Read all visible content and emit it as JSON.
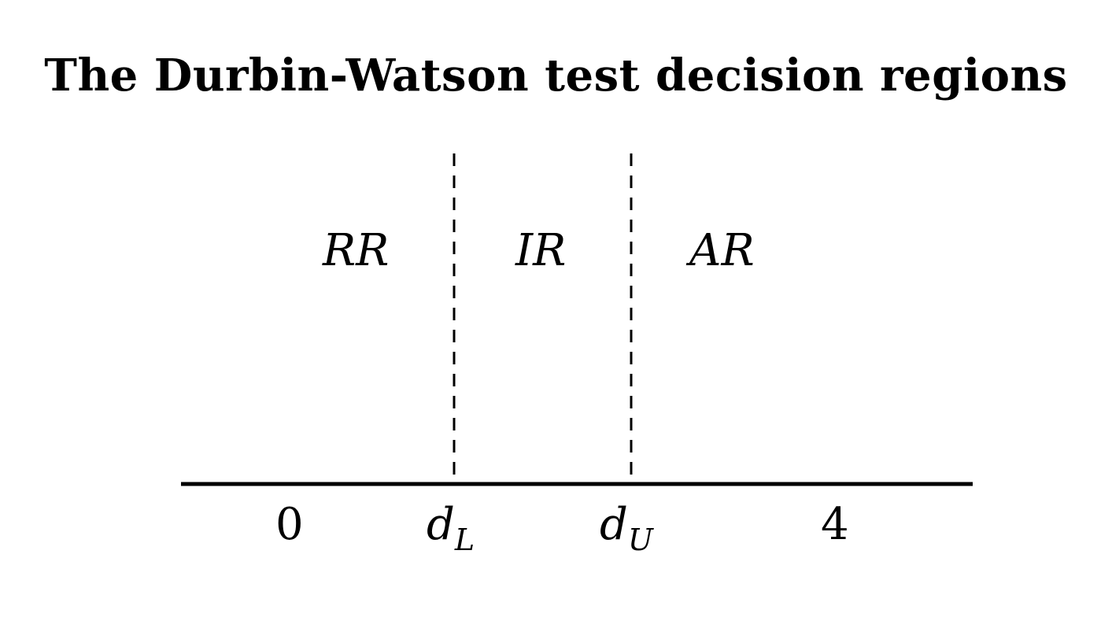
{
  "title": "The Durbin-Watson test decision regions",
  "regions": [
    {
      "id": "rr",
      "label": "RR"
    },
    {
      "id": "ir",
      "label": "IR"
    },
    {
      "id": "ar",
      "label": "AR"
    }
  ],
  "ticks": {
    "zero": "0",
    "dl_base": "d",
    "dl_sub": "L",
    "du_base": "d",
    "du_sub": "U",
    "four": "4"
  },
  "colors": {
    "line": "#000000",
    "background": "#ffffff"
  }
}
